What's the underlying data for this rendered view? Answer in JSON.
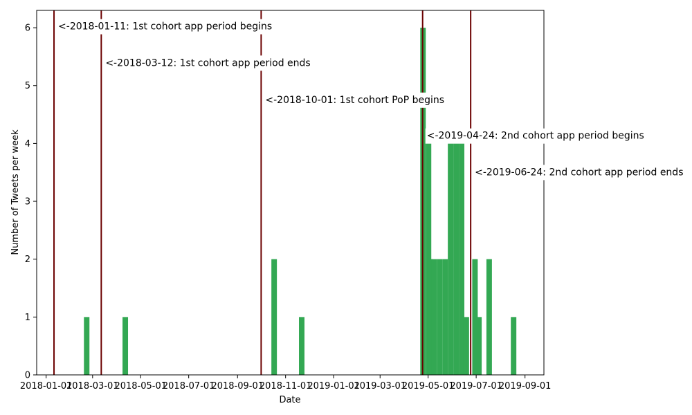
{
  "chart_data": {
    "type": "bar",
    "xlabel": "Date",
    "ylabel": "Number of Tweets per week",
    "xlim": [
      "2017-12-20",
      "2019-09-25"
    ],
    "ylim": [
      0,
      6.3
    ],
    "x_ticks": [
      "2018-01",
      "2018-03",
      "2018-05",
      "2018-07",
      "2018-09",
      "2018-11",
      "2019-01",
      "2019-03",
      "2019-05",
      "2019-07",
      "2019-09"
    ],
    "y_ticks": [
      0,
      1,
      2,
      3,
      4,
      5,
      6
    ],
    "bar_color": "#33a853",
    "line_color": "#6b0000",
    "bars": [
      {
        "week_start": "2018-02-18",
        "value": 1
      },
      {
        "week_start": "2018-04-08",
        "value": 1
      },
      {
        "week_start": "2018-10-14",
        "value": 2
      },
      {
        "week_start": "2018-11-18",
        "value": 1
      },
      {
        "week_start": "2019-04-21",
        "value": 6
      },
      {
        "week_start": "2019-04-28",
        "value": 4
      },
      {
        "week_start": "2019-04-30",
        "value": 2
      },
      {
        "week_start": "2019-05-05",
        "value": 2
      },
      {
        "week_start": "2019-05-12",
        "value": 2
      },
      {
        "week_start": "2019-05-19",
        "value": 2
      },
      {
        "week_start": "2019-05-26",
        "value": 4
      },
      {
        "week_start": "2019-06-02",
        "value": 4
      },
      {
        "week_start": "2019-06-09",
        "value": 4
      },
      {
        "week_start": "2019-06-15",
        "value": 1
      },
      {
        "week_start": "2019-06-26",
        "value": 2
      },
      {
        "week_start": "2019-07-01",
        "value": 1
      },
      {
        "week_start": "2019-07-14",
        "value": 2
      },
      {
        "week_start": "2019-08-14",
        "value": 1
      }
    ],
    "annotations": [
      {
        "date": "2018-01-11",
        "text": "<-2018-01-11: 1st cohort app period begins",
        "y": 6.03
      },
      {
        "date": "2018-03-12",
        "text": "<-2018-03-12: 1st cohort app period ends",
        "y": 5.4
      },
      {
        "date": "2018-10-01",
        "text": "<-2018-10-01: 1st cohort PoP begins",
        "y": 4.76
      },
      {
        "date": "2019-04-24",
        "text": "<-2019-04-24: 2nd cohort app period begins",
        "y": 4.14
      },
      {
        "date": "2019-06-24",
        "text": "<-2019-06-24: 2nd cohort app period ends",
        "y": 3.51
      }
    ]
  }
}
